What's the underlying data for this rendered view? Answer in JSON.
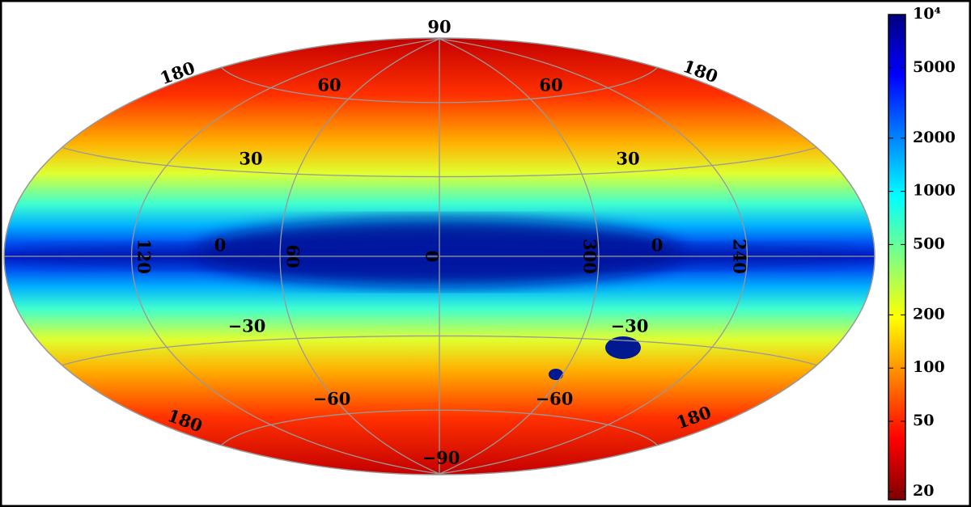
{
  "map": {
    "grid_labels": [
      "90",
      "180",
      "180",
      "60",
      "60",
      "30",
      "30",
      "120",
      "0",
      "60",
      "0",
      "300",
      "0",
      "240",
      "−30",
      "−30",
      "−60",
      "−60",
      "180",
      "180",
      "−90"
    ]
  },
  "colorbar": {
    "scale": "log",
    "lim": [
      18,
      10000
    ],
    "ticks": [
      {
        "value": 10000,
        "label": "10⁴"
      },
      5000,
      2000,
      1000,
      500,
      200,
      100,
      50,
      20
    ],
    "colormap": [
      "#800000",
      "#ff0000",
      "#ff8000",
      "#ffff00",
      "#80ff80",
      "#00ffff",
      "#0080ff",
      "#0000ff",
      "#000080"
    ]
  }
}
